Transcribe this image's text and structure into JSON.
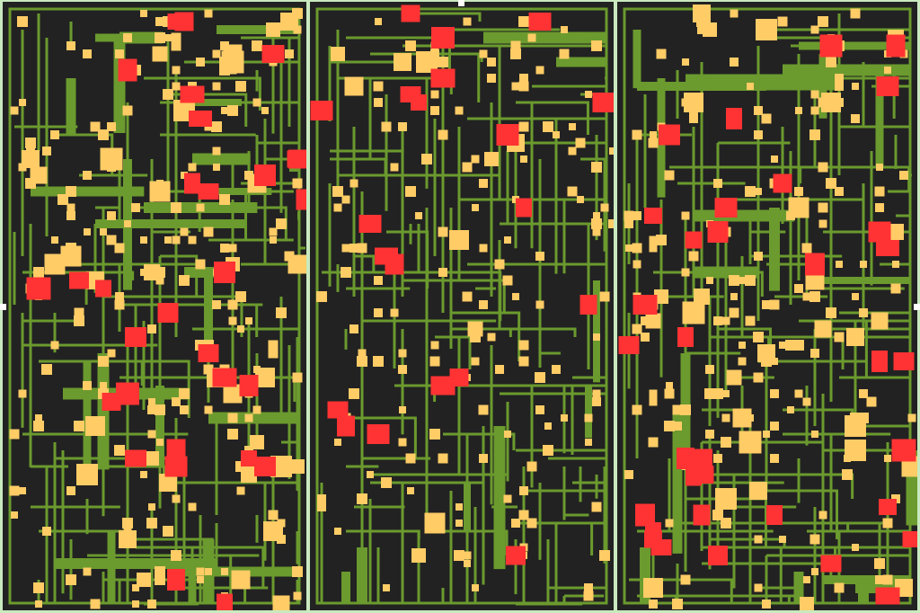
{
  "theme": {
    "background": "#c9e9bf",
    "board": "#222222",
    "trace": "#6b9a2e",
    "node": "#ffcc66",
    "hot_node": "#ff3333"
  },
  "panels": [
    {
      "name": "panel-left",
      "seed": 11,
      "thin_traces": 150,
      "thick_traces": 26,
      "nodes": 190,
      "hot_nodes": 30,
      "big_nodes": 34
    },
    {
      "name": "panel-middle",
      "seed": 37,
      "thin_traces": 165,
      "thick_traces": 8,
      "nodes": 150,
      "hot_nodes": 20,
      "big_nodes": 10
    },
    {
      "name": "panel-right",
      "seed": 73,
      "thin_traces": 150,
      "thick_traces": 22,
      "nodes": 175,
      "hot_nodes": 34,
      "big_nodes": 28
    }
  ]
}
